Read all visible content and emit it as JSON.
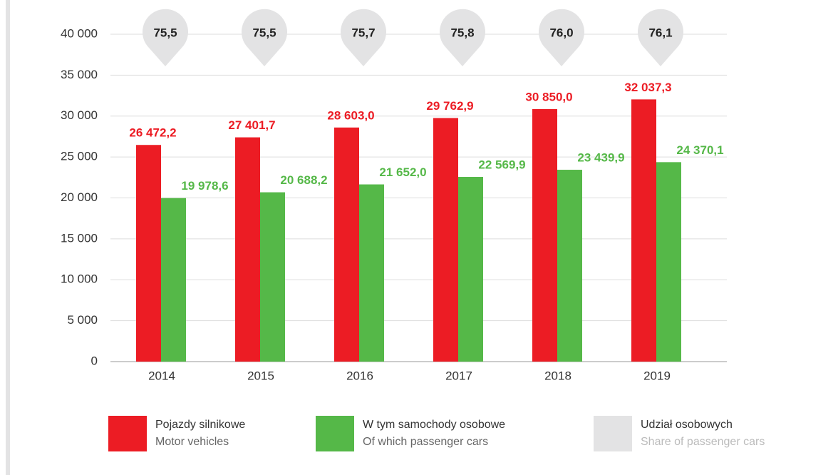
{
  "chart_data": {
    "type": "bar",
    "categories": [
      "2014",
      "2015",
      "2016",
      "2017",
      "2018",
      "2019"
    ],
    "series": [
      {
        "name": "Pojazdy silnikowe",
        "name_en": "Motor vehicles",
        "color": "#ec1c24",
        "values": [
          26472.2,
          27401.7,
          28603.0,
          29762.9,
          30850.0,
          32037.3
        ],
        "value_labels": [
          "26 472,2",
          "27 401,7",
          "28 603,0",
          "29 762,9",
          "30 850,0",
          "32 037,3"
        ]
      },
      {
        "name": "W tym samochody osobowe",
        "name_en": "Of which passenger cars",
        "color": "#55b848",
        "values": [
          19978.6,
          20688.2,
          21652.0,
          22569.9,
          23439.9,
          24370.1
        ],
        "value_labels": [
          "19 978,6",
          "20 688,2",
          "21 652,0",
          "22 569,9",
          "23 439,9",
          "24 370,1"
        ]
      },
      {
        "name": "Udział osobowych",
        "name_en": "Share of passenger cars",
        "color": "#e3e3e4",
        "style": "bubble",
        "values": [
          75.5,
          75.5,
          75.7,
          75.8,
          76.0,
          76.1
        ],
        "value_labels": [
          "75,5",
          "75,5",
          "75,7",
          "75,8",
          "76,0",
          "76,1"
        ]
      }
    ],
    "ylim": [
      0,
      40000
    ],
    "yticks": [
      0,
      {
        "value": 5000,
        "label": "5 000"
      },
      {
        "value": 10000,
        "label": "10 000"
      },
      {
        "value": 15000,
        "label": "15 000"
      },
      {
        "value": 20000,
        "label": "20 000"
      },
      {
        "value": 25000,
        "label": "25 000"
      },
      {
        "value": 30000,
        "label": "30 000"
      },
      {
        "value": 35000,
        "label": "35 000"
      },
      {
        "value": 40000,
        "label": "40 000"
      }
    ],
    "grid": true
  }
}
